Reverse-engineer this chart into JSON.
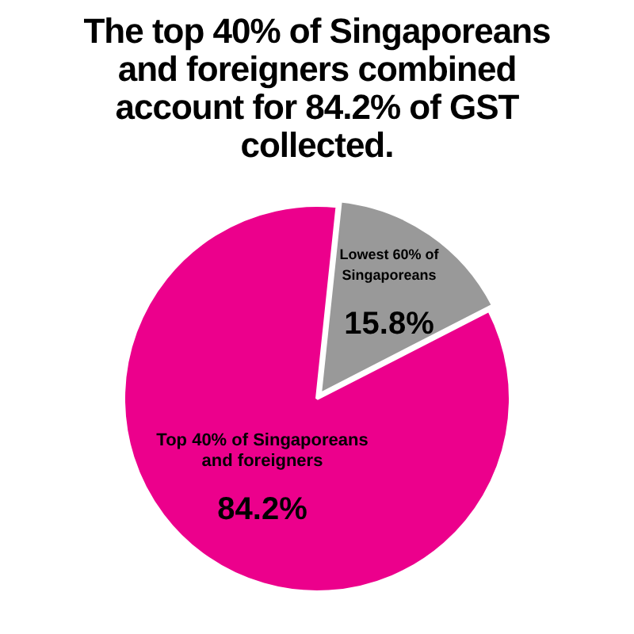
{
  "chart_data": {
    "type": "pie",
    "title": "The top 40% of Singaporeans and foreigners combined account for 84.2% of GST collected.",
    "categories": [
      "Lowest 60% of Singaporeans",
      "Top 40% of Singaporeans and foreigners"
    ],
    "values": [
      15.8,
      84.2
    ],
    "colors": [
      "#999999",
      "#ec008c"
    ],
    "value_labels": [
      "15.8%",
      "84.2%"
    ],
    "legend": false
  }
}
